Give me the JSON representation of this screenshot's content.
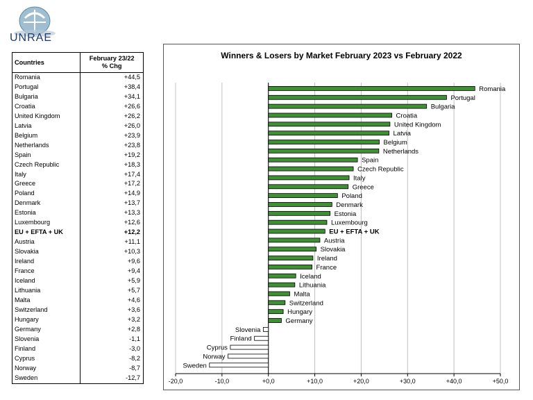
{
  "logo": {
    "text": "UNRAE"
  },
  "table": {
    "header_country": "Countries",
    "header_change_line1": "February 23/22",
    "header_change_line2": "% Chg",
    "rows": [
      {
        "country": "Romania",
        "value": "+44,5"
      },
      {
        "country": "Portugal",
        "value": "+38,4"
      },
      {
        "country": "Bulgaria",
        "value": "+34,1"
      },
      {
        "country": "Croatia",
        "value": "+26,6"
      },
      {
        "country": "United Kingdom",
        "value": "+26,2"
      },
      {
        "country": "Latvia",
        "value": "+26,0"
      },
      {
        "country": "Belgium",
        "value": "+23,9"
      },
      {
        "country": "Netherlands",
        "value": "+23,8"
      },
      {
        "country": "Spain",
        "value": "+19,2"
      },
      {
        "country": "Czech Republic",
        "value": "+18,3"
      },
      {
        "country": "Italy",
        "value": "+17,4"
      },
      {
        "country": "Greece",
        "value": "+17,2"
      },
      {
        "country": "Poland",
        "value": "+14,9"
      },
      {
        "country": "Denmark",
        "value": "+13,7"
      },
      {
        "country": "Estonia",
        "value": "+13,3"
      },
      {
        "country": "Luxembourg",
        "value": "+12,6"
      },
      {
        "country": "EU + EFTA + UK",
        "value": "+12,2",
        "bold": true
      },
      {
        "country": "Austria",
        "value": "+11,1"
      },
      {
        "country": "Slovakia",
        "value": "+10,3"
      },
      {
        "country": "Ireland",
        "value": "+9,6"
      },
      {
        "country": "France",
        "value": "+9,4"
      },
      {
        "country": "Iceland",
        "value": "+5,9"
      },
      {
        "country": "Lithuania",
        "value": "+5,7"
      },
      {
        "country": "Malta",
        "value": "+4,6"
      },
      {
        "country": "Switzerland",
        "value": "+3,6"
      },
      {
        "country": "Hungary",
        "value": "+3,2"
      },
      {
        "country": "Germany",
        "value": "+2,8"
      },
      {
        "country": "Slovenia",
        "value": "-1,1"
      },
      {
        "country": "Finland",
        "value": "-3,0"
      },
      {
        "country": "Cyprus",
        "value": "-8,2"
      },
      {
        "country": "Norway",
        "value": "-8,7"
      },
      {
        "country": "Sweden",
        "value": "-12,7"
      }
    ]
  },
  "chart_data": {
    "type": "bar",
    "orientation": "horizontal",
    "title": "Winners & Losers by Market February 2023 vs February 2022",
    "categories": [
      "Romania",
      "Portugal",
      "Bulgaria",
      "Croatia",
      "United Kingdom",
      "Latvia",
      "Belgium",
      "Netherlands",
      "Spain",
      "Czech Republic",
      "Italy",
      "Greece",
      "Poland",
      "Denmark",
      "Estonia",
      "Luxembourg",
      "EU + EFTA + UK",
      "Austria",
      "Slovakia",
      "Ireland",
      "France",
      "Iceland",
      "Lithuania",
      "Malta",
      "Switzerland",
      "Hungary",
      "Germany",
      "Slovenia",
      "Finland",
      "Cyprus",
      "Norway",
      "Sweden"
    ],
    "values": [
      44.5,
      38.4,
      34.1,
      26.6,
      26.2,
      26.0,
      23.9,
      23.8,
      19.2,
      18.3,
      17.4,
      17.2,
      14.9,
      13.7,
      13.3,
      12.6,
      12.2,
      11.1,
      10.3,
      9.6,
      9.4,
      5.9,
      5.7,
      4.6,
      3.6,
      3.2,
      2.8,
      -1.1,
      -3.0,
      -8.2,
      -8.7,
      -12.7
    ],
    "bold_categories": [
      "EU + EFTA + UK"
    ],
    "xlim": [
      -20,
      50
    ],
    "xticks": [
      -20,
      -10,
      0,
      10,
      20,
      30,
      40,
      50
    ],
    "xtick_labels": [
      "-20,0",
      "-10,0",
      "+0,0",
      "+10,0",
      "+20,0",
      "+30,0",
      "+40,0",
      "+50,0"
    ],
    "grid": "vertical",
    "colors": {
      "positive": "#3f8f35",
      "negative": "#ffffff",
      "outline": "#000000",
      "grid": "#c0c0c0"
    }
  }
}
